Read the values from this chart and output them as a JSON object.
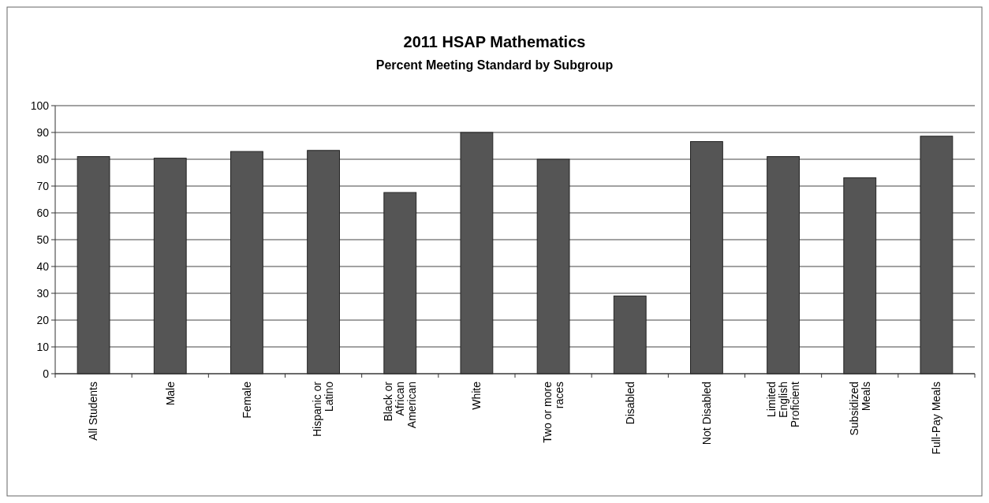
{
  "chart_data": {
    "type": "bar",
    "title": "2011 HSAP Mathematics",
    "subtitle": "Percent Meeting Standard by Subgroup",
    "categories": [
      "All Students",
      "Male",
      "Female",
      "Hispanic or Latino",
      "Black or African American",
      "White",
      "Two or more races",
      "Disabled",
      "Not Disabled",
      "Limited English Proficient",
      "Subsidized Meals",
      "Full-Pay Meals"
    ],
    "values": [
      81,
      80.4,
      82.9,
      83.3,
      67.6,
      90,
      80,
      29,
      86.6,
      81,
      73.1,
      88.6
    ],
    "color": "#555555",
    "ylim": [
      0,
      100
    ],
    "yticks": [
      0,
      10,
      20,
      30,
      40,
      50,
      60,
      70,
      80,
      90,
      100
    ],
    "grid": "y"
  }
}
